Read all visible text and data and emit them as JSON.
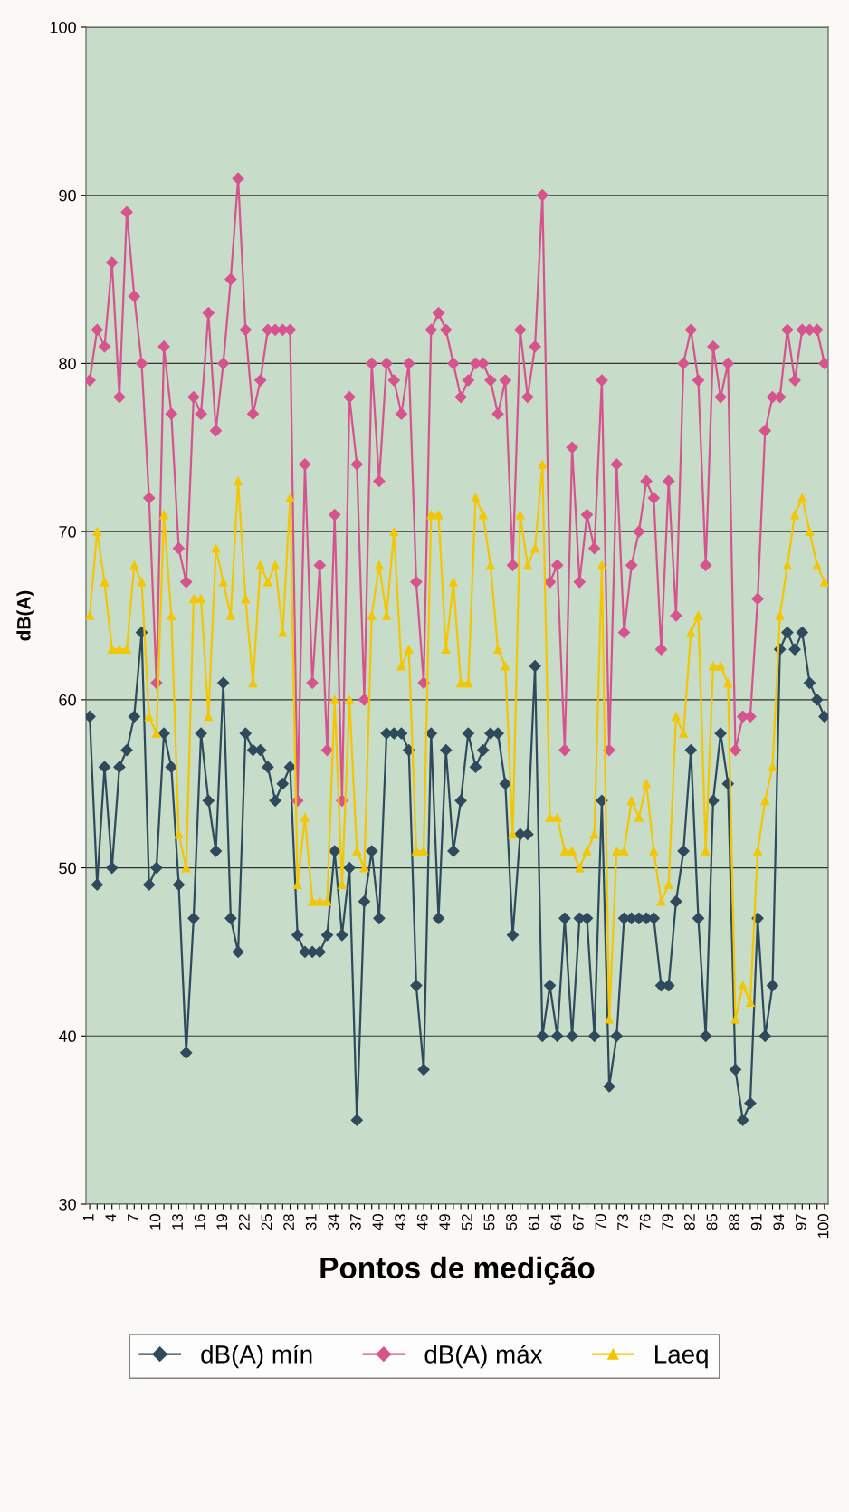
{
  "chart_data": {
    "type": "line",
    "categories": [
      "1",
      null,
      null,
      "4",
      null,
      null,
      "7",
      null,
      null,
      "10",
      null,
      null,
      "13",
      null,
      null,
      "16",
      null,
      null,
      "19",
      null,
      null,
      "22",
      null,
      null,
      "25",
      null,
      null,
      "28",
      null,
      null,
      "31",
      null,
      null,
      "34",
      null,
      null,
      "37",
      null,
      null,
      "40",
      null,
      null,
      "43",
      null,
      null,
      "46",
      null,
      null,
      "49",
      null,
      null,
      "52",
      null,
      null,
      "55",
      null,
      null,
      "58",
      null,
      null,
      "61",
      null,
      null,
      "64",
      null,
      null,
      "67",
      null,
      null,
      "70",
      null,
      null,
      "73",
      null,
      null,
      "76",
      null,
      null,
      "79",
      null,
      null,
      "82",
      null,
      null,
      "85",
      null,
      null,
      "88",
      null,
      null,
      "91",
      null,
      null,
      "94",
      null,
      null,
      "97",
      null,
      null,
      "100"
    ],
    "series": [
      {
        "name": "dB(A) mín",
        "color": "#2e4a5c",
        "marker": "diamond",
        "values": [
          59,
          49,
          56,
          50,
          56,
          57,
          59,
          64,
          49,
          50,
          58,
          56,
          49,
          39,
          47,
          58,
          54,
          51,
          61,
          47,
          45,
          58,
          57,
          57,
          56,
          54,
          55,
          56,
          46,
          45,
          45,
          45,
          46,
          51,
          46,
          50,
          35,
          48,
          51,
          47,
          58,
          58,
          58,
          57,
          43,
          38,
          58,
          47,
          57,
          51,
          54,
          58,
          56,
          57,
          58,
          58,
          55,
          46,
          52,
          52,
          62,
          40,
          43,
          40,
          47,
          40,
          47,
          47,
          40,
          54,
          37,
          40,
          47,
          47,
          47,
          47,
          47,
          43,
          43,
          48,
          51,
          57,
          47,
          40,
          54,
          58,
          55,
          38,
          35,
          36,
          47,
          40,
          43,
          63,
          64,
          63,
          64,
          61,
          60,
          59
        ]
      },
      {
        "name": "dB(A) máx",
        "color": "#d6548e",
        "marker": "diamond",
        "values": [
          79,
          82,
          81,
          86,
          78,
          89,
          84,
          80,
          72,
          61,
          81,
          77,
          69,
          67,
          78,
          77,
          83,
          76,
          80,
          85,
          91,
          82,
          77,
          79,
          82,
          82,
          82,
          82,
          54,
          74,
          61,
          68,
          57,
          71,
          54,
          78,
          74,
          60,
          80,
          73,
          80,
          79,
          77,
          80,
          67,
          61,
          82,
          83,
          82,
          80,
          78,
          79,
          80,
          80,
          79,
          77,
          79,
          68,
          82,
          78,
          81,
          90,
          67,
          68,
          57,
          75,
          67,
          71,
          69,
          79,
          57,
          74,
          64,
          68,
          70,
          73,
          72,
          63,
          73,
          65,
          80,
          82,
          79,
          68,
          81,
          78,
          80,
          57,
          59,
          59,
          66,
          76,
          78,
          78,
          82,
          79,
          82,
          82,
          82,
          80
        ]
      },
      {
        "name": "Laeq",
        "color": "#f2c600",
        "marker": "triangle",
        "values": [
          65,
          70,
          67,
          63,
          63,
          63,
          68,
          67,
          59,
          58,
          71,
          65,
          52,
          50,
          66,
          66,
          59,
          69,
          67,
          65,
          73,
          66,
          61,
          68,
          67,
          68,
          64,
          72,
          49,
          53,
          48,
          48,
          48,
          60,
          49,
          60,
          51,
          50,
          65,
          68,
          65,
          70,
          62,
          63,
          51,
          51,
          71,
          71,
          63,
          67,
          61,
          61,
          72,
          71,
          68,
          63,
          62,
          52,
          71,
          68,
          69,
          74,
          53,
          53,
          51,
          51,
          50,
          51,
          52,
          68,
          41,
          51,
          51,
          54,
          53,
          55,
          51,
          48,
          49,
          59,
          58,
          64,
          65,
          51,
          62,
          62,
          61,
          41,
          43,
          42,
          51,
          54,
          56,
          65,
          68,
          71,
          72,
          70,
          68,
          67
        ]
      }
    ],
    "xlabel": "Pontos de medição",
    "ylabel": "dB(A)",
    "ylim": [
      30,
      100
    ],
    "yticks": [
      30,
      40,
      50,
      60,
      70,
      80,
      90,
      100
    ],
    "grid": "y",
    "legend": "bottom"
  }
}
